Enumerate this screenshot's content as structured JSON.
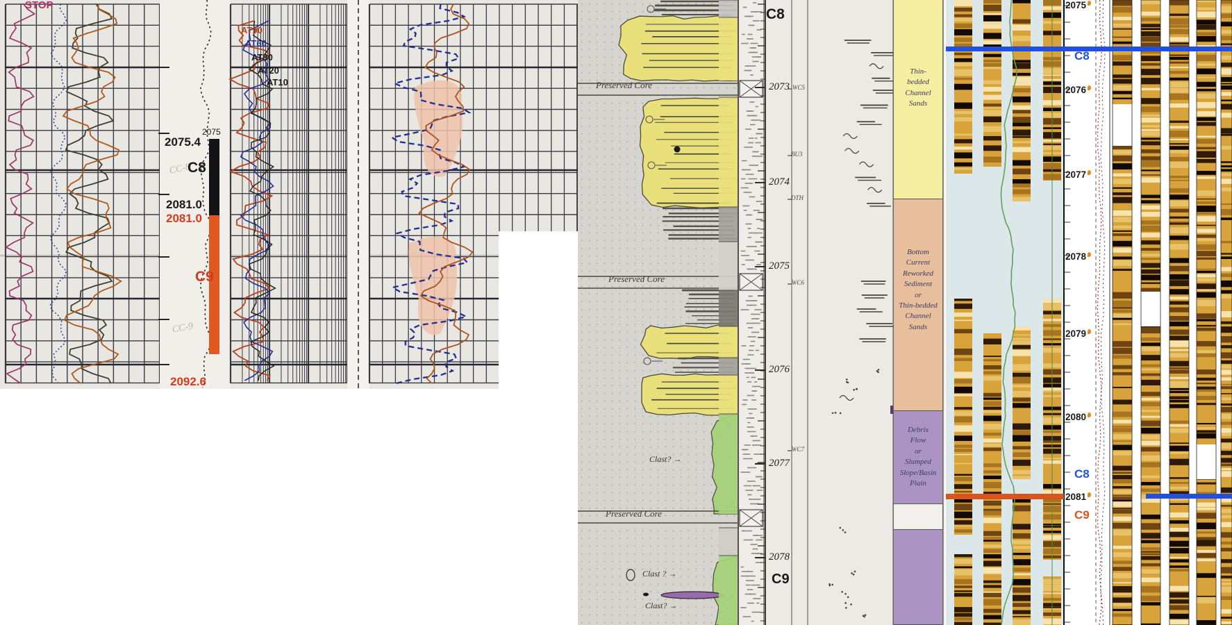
{
  "panelA": {
    "stop_label": "STOP",
    "curve_labels": [
      {
        "label": "AT90",
        "color": "#b5431c"
      },
      {
        "label": "AT60",
        "color": "#23309c"
      },
      {
        "label": "AT30",
        "color": "#1a1a1a"
      },
      {
        "label": "AT20",
        "color": "#1a1a1a"
      },
      {
        "label": "AT10",
        "color": "#1a1a1a"
      }
    ],
    "depth_track": {
      "tick_label_small": "2075",
      "core_top_depth": "2075.4",
      "zone_upper": "C8",
      "zone_upper_pencil": "CC-8",
      "zone_boundary_black": "2081.0",
      "zone_boundary_red": "2081.0",
      "zone_lower": "C9",
      "zone_lower_pencil": "CC-9",
      "core_bottom_depth": "2092.6",
      "c8_bar_color": "#141414",
      "c9_bar_color": "#e05a20",
      "red_text_color": "#d63a1e"
    }
  },
  "panelB": {
    "zone_top": "C8",
    "zone_bottom": "C9",
    "depths": [
      "2073",
      "2074",
      "2075",
      "2076",
      "2077",
      "2078"
    ],
    "core_markers": [
      "Preserved Core",
      "Preserved Core",
      "Preserved Core"
    ],
    "clast_notes": [
      "Clast? →",
      "Clast ? →",
      "Clast? →"
    ],
    "sample_ids": [
      "WC5",
      "BU3",
      "DTH",
      "WC6",
      "WC7"
    ],
    "facies_boxes": [
      {
        "label": "Thin-\nbedded\nChannel\nSands",
        "color": "#f5eda0"
      },
      {
        "label": "Bottom\nCurrent\nReworked\nSediment\nor\nThin-bedded\nChannel\nSands",
        "color": "#e8bf9d"
      },
      {
        "label": "Debris\nFlow\nor\nSlumped\nSlope/Basin\nPlain",
        "color": "#ab93c4"
      },
      {
        "label": "",
        "color": "#ab93c4"
      }
    ]
  },
  "panelC": {
    "depths": [
      "2075",
      "2076",
      "2077",
      "2078",
      "2079",
      "2080",
      "2081"
    ],
    "zone_labels": {
      "c8_top": "C8",
      "c8_bottom": "C8",
      "c9": "C9"
    },
    "colors": {
      "c8_line": "#2050dd",
      "c9_line": "#d9541e"
    }
  }
}
